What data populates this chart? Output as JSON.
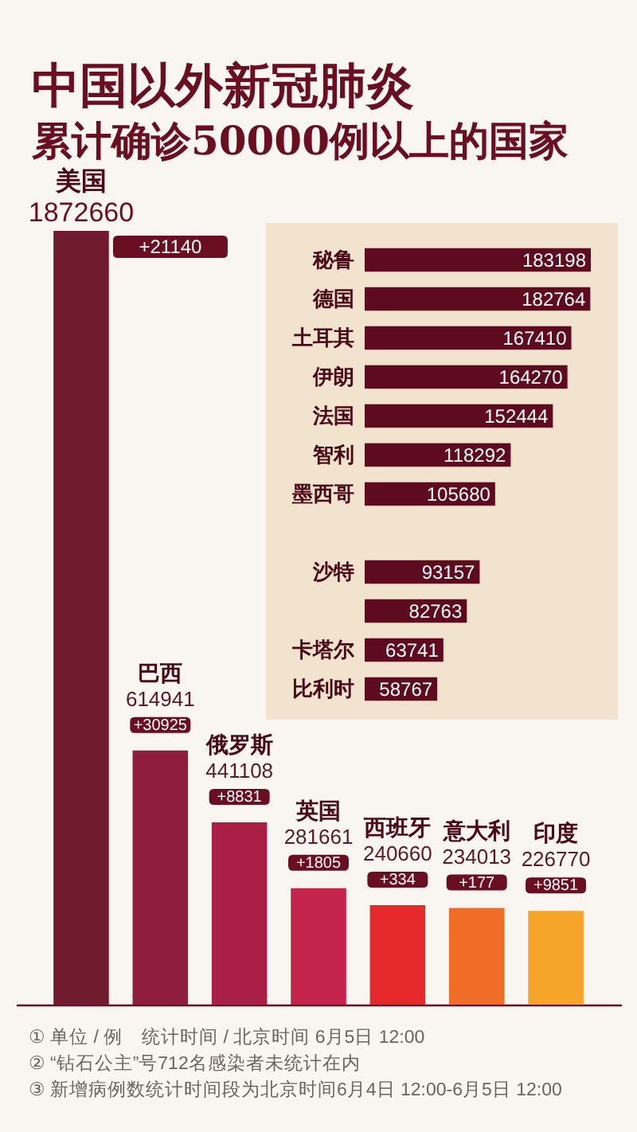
{
  "chart_data": [
    {
      "type": "bar",
      "title": "中国以外新冠肺炎",
      "subtitle": "累计确诊50000例以上的国家",
      "categories": [
        "美国",
        "巴西",
        "俄罗斯",
        "英国",
        "西班牙",
        "意大利",
        "印度"
      ],
      "values": [
        1872660,
        614941,
        441108,
        281661,
        240660,
        234013,
        226770
      ],
      "colors": [
        "#6f1a2d",
        "#8f1d3d",
        "#a91f45",
        "#c4234c",
        "#e62a2c",
        "#f06d27",
        "#f6a42a"
      ],
      "data_labels": true,
      "tick_labels": false,
      "annotations": [
        "+21140",
        "+30925",
        "+8831",
        "+1805",
        "+334",
        "+177",
        "+9851",
        "① 单位 / 例　统计时间 / 北京时间 6月5日 12:00",
        "② “钻石公主”号712名感染者未统计在内",
        "③ 新增病例数统计时间段为北京时间6月4日 12:00-6月5日 12:00"
      ]
    },
    {
      "type": "bar",
      "orientation": "horizontal",
      "categories": [
        "秘鲁",
        "德国",
        "土耳其",
        "伊朗",
        "法国",
        "智利",
        "墨西哥",
        null,
        "沙特",
        null,
        "卡塔尔",
        "比利时"
      ],
      "values": [
        183198,
        182764,
        167410,
        164270,
        152444,
        118292,
        105680,
        null,
        93157,
        82763,
        63741,
        58767
      ],
      "color": "#5e0b1f",
      "data_labels": true
    }
  ]
}
